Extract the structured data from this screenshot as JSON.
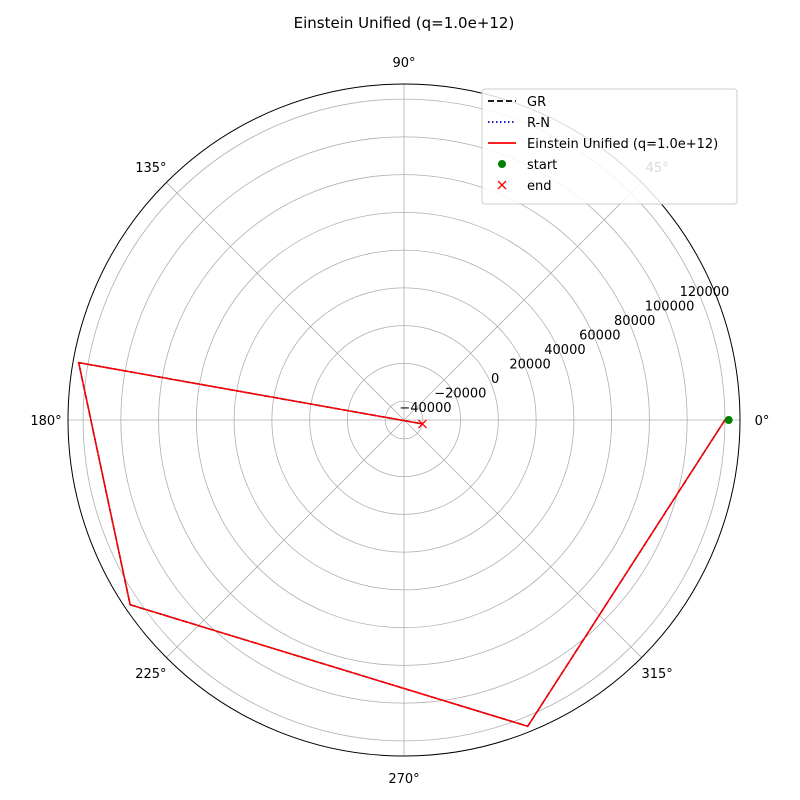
{
  "chart_data": {
    "type": "line",
    "projection": "polar",
    "title": "Einstein Unified (q=1.0e+12)",
    "theta_tick_labels": [
      "0°",
      "45°",
      "90°",
      "135°",
      "180°",
      "225°",
      "270°",
      "315°"
    ],
    "theta_ticks_deg": [
      0,
      45,
      90,
      135,
      180,
      225,
      270,
      315
    ],
    "r_ticks": [
      -40000,
      -20000,
      0,
      20000,
      40000,
      60000,
      80000,
      100000,
      120000
    ],
    "r_tick_labels": [
      "−40000",
      "−20000",
      "0",
      "20000",
      "40000",
      "60000",
      "80000",
      "100000",
      "120000"
    ],
    "rlim": [
      -50000,
      128000
    ],
    "r_label_angle_deg": 22.5,
    "grid": true,
    "legend_position": "upper-right",
    "series": [
      {
        "name": "GR",
        "color": "#000000",
        "style": "dashed",
        "theta_deg": [
          0,
          292,
          214,
          170,
          348
        ],
        "r": [
          120000,
          125000,
          125000,
          125000,
          -40000
        ]
      },
      {
        "name": "R-N",
        "color": "#0000bf",
        "style": "dotted",
        "theta_deg": [
          0,
          292,
          214,
          170,
          348
        ],
        "r": [
          120000,
          125000,
          125000,
          125000,
          -40000
        ]
      },
      {
        "name": "Einstein Unified (q=1.0e+12)",
        "color": "#ff0000",
        "style": "solid",
        "theta_deg": [
          0,
          292,
          214,
          170,
          348
        ],
        "r": [
          120000,
          125000,
          125000,
          125000,
          -40000
        ]
      }
    ],
    "markers": [
      {
        "name": "start",
        "color": "#008000",
        "symbol": "circle",
        "theta_deg": 0,
        "r": 122000
      },
      {
        "name": "end",
        "color": "#ff0000",
        "symbol": "x",
        "theta_deg": 348,
        "r": -40000
      }
    ]
  }
}
